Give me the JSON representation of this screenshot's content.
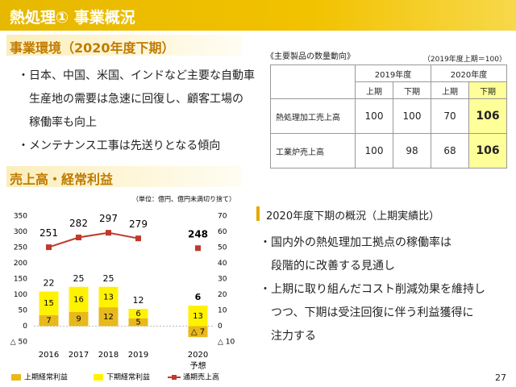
{
  "header": {
    "title": "熱処理① 事業概況"
  },
  "section1": {
    "title": "事業環境（2020年度下期）",
    "bullets": [
      [
        "・日本、中国、米国、インドなど主要な自動車",
        "生産地の需要は急速に回復し、顧客工場の",
        "稼働率も向上"
      ],
      [
        "・メンテナンス工事は先送りとなる傾向"
      ]
    ]
  },
  "table": {
    "caption": "《主要製品の数量動向》",
    "note": "（2019年度上期＝100）",
    "years": [
      "2019年度",
      "2020年度"
    ],
    "halves": [
      "上期",
      "下期",
      "上期",
      "下期"
    ],
    "highlight_column": 3,
    "rows": [
      {
        "label": "熱処理加工売上高",
        "values": [
          100,
          100,
          70,
          106
        ]
      },
      {
        "label": "工業炉売上高",
        "values": [
          100,
          98,
          68,
          106
        ]
      }
    ]
  },
  "section2": {
    "title": "売上高・経常利益"
  },
  "chart_data": {
    "type": "combo",
    "unit_note": "（単位：億円、億円未満切り捨て）",
    "categories": [
      "2016",
      "2017",
      "2018",
      "2019",
      null,
      "2020"
    ],
    "category_notes": [
      null,
      null,
      null,
      null,
      null,
      "予想"
    ],
    "series": [
      {
        "name": "上期経常利益",
        "type": "bar",
        "axis": "y2",
        "color": "#e8b91c",
        "values": [
          7,
          9,
          12,
          5,
          null,
          -7
        ],
        "value_labels": [
          null,
          null,
          null,
          null,
          null,
          "△ 7"
        ]
      },
      {
        "name": "下期経常利益",
        "type": "bar",
        "axis": "y2",
        "color": "#fff200",
        "values": [
          15,
          16,
          13,
          6,
          null,
          13
        ]
      },
      {
        "name": "通期売上高",
        "type": "line",
        "axis": "y",
        "color": "#c0392b",
        "values": [
          251,
          282,
          297,
          279,
          null,
          248
        ]
      }
    ],
    "totals": [
      22,
      25,
      25,
      12,
      null,
      6
    ],
    "ylim": [
      -50,
      350
    ],
    "yticks": [
      {
        "value": -50,
        "label": "△ 50"
      },
      0,
      50,
      100,
      150,
      200,
      250,
      300,
      350
    ],
    "y2lim": [
      -10,
      70
    ],
    "y2ticks": [
      {
        "value": -10,
        "label": "△ 10"
      },
      0,
      10,
      20,
      30,
      40,
      50,
      60,
      70
    ],
    "grid": false,
    "legend": "bottom"
  },
  "summary": {
    "title": "2020年度下期の概況（上期実績比）",
    "bullets": [
      [
        "・国内外の熱処理加工拠点の稼働率は",
        "段階的に改善する見通し"
      ],
      [
        "・上期に取り組んだコスト削減効果を維持し",
        "つつ、下期は受注回復に伴う利益獲得に",
        "注力する"
      ]
    ]
  },
  "page_number": 27
}
